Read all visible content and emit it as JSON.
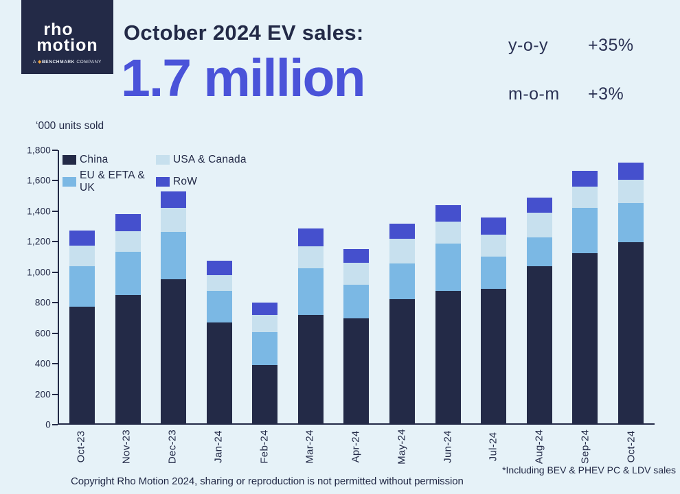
{
  "page": {
    "background": "#e6f2f8",
    "text_navy": "#232a47",
    "accent_blue": "#4a53d9"
  },
  "logo": {
    "word1": "rho",
    "word2": "motion",
    "sub_prefix": "A",
    "sub_brand": "BENCHMARK",
    "sub_suffix": "COMPANY",
    "mark_icon": "benchmark-diamond-icon",
    "mark_color": "#f2a33c",
    "background": "#232a47"
  },
  "header": {
    "title": "October 2024 EV sales:",
    "headline_value": "1.7 million",
    "stats": [
      {
        "label": "y-o-y",
        "value": "+35%"
      },
      {
        "label": "m-o-m",
        "value": "+3%"
      }
    ]
  },
  "chart_data": {
    "type": "bar",
    "stacked": true,
    "units_label": "‘000 units sold",
    "categories": [
      "Oct-23",
      "Nov-23",
      "Dec-23",
      "Jan-24",
      "Feb-24",
      "Mar-24",
      "Apr-24",
      "May-24",
      "Jun-24",
      "Jul-24",
      "Aug-24",
      "Sep-24",
      "Oct-24"
    ],
    "series": [
      {
        "name": "China",
        "color": "#232a47",
        "values": [
          770,
          845,
          950,
          665,
          385,
          715,
          690,
          820,
          875,
          885,
          1035,
          1120,
          1195
        ]
      },
      {
        "name": "EU & EFTA & UK",
        "color": "#7bb8e4",
        "values": [
          265,
          285,
          310,
          210,
          215,
          305,
          225,
          235,
          310,
          215,
          190,
          300,
          255
        ]
      },
      {
        "name": "USA & Canada",
        "color": "#c7e0ee",
        "values": [
          135,
          135,
          160,
          100,
          115,
          145,
          145,
          160,
          145,
          145,
          165,
          140,
          155
        ]
      },
      {
        "name": "RoW",
        "color": "#4550cd",
        "values": [
          100,
          115,
          110,
          95,
          80,
          120,
          90,
          100,
          110,
          110,
          100,
          105,
          115
        ]
      }
    ],
    "totals": [
      1270,
      1380,
      1530,
      1070,
      795,
      1285,
      1150,
      1315,
      1440,
      1355,
      1490,
      1665,
      1720
    ],
    "ylim": [
      0,
      1800
    ],
    "ytick_step": 200,
    "grid": false,
    "legend_position": "top-left-inside",
    "legend_order": [
      "China",
      "USA & Canada",
      "EU & EFTA & UK",
      "RoW"
    ],
    "x_label_rotation": -90
  },
  "footer": {
    "note": "*Including BEV & PHEV PC & LDV sales",
    "copyright": "Copyright Rho Motion 2024, sharing or reproduction is not permitted without permission"
  }
}
